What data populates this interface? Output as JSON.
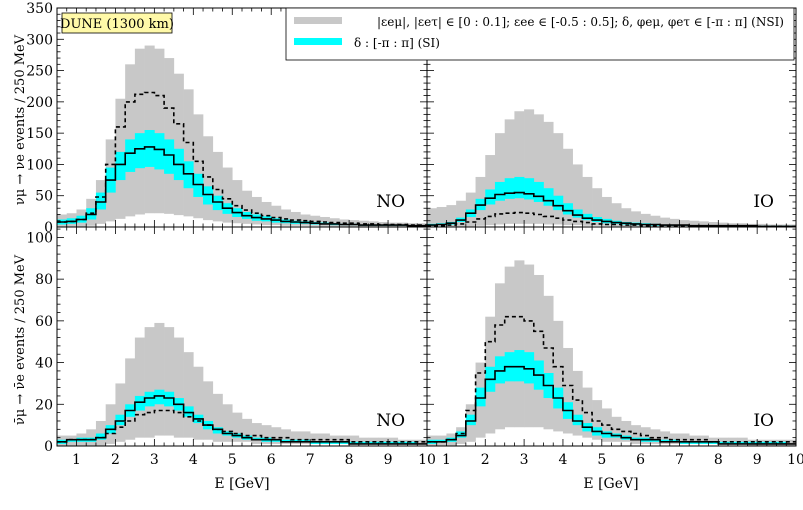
{
  "figure": {
    "experiment_label": "DUNE (1300 km)",
    "xlabel": "E [GeV]",
    "ylabel_top": "νμ → νe events / 250 MeV",
    "ylabel_bottom": "ν̄μ → ν̄e events / 250 MeV",
    "legend": {
      "nsi": "|εeμ|, |εeτ| ∈ [0 : 0.1]; εee ∈ [-0.5 : 0.5]; δ, φeμ, φeτ ∈ [-π : π] (NSI)",
      "si": "δ : [-π : π] (SI)"
    },
    "colors": {
      "nsi_band": "#c8c8c8",
      "si_band": "#00ffff",
      "line": "#000000"
    }
  },
  "chart_data": [
    {
      "type": "area",
      "panel": "neutrino-NO",
      "ordering_label": "NO",
      "ylabel": "νμ → νe events / 250 MeV",
      "xlim": [
        0.5,
        10
      ],
      "ylim": [
        0,
        350
      ],
      "yticks": [
        0,
        50,
        100,
        150,
        200,
        250,
        300,
        350
      ],
      "xticks": [
        1,
        2,
        3,
        4,
        5,
        6,
        7,
        8,
        9,
        10
      ],
      "series": [
        {
          "name": "NSI max",
          "values": [
            20,
            22,
            28,
            45,
            75,
            140,
            205,
            260,
            285,
            290,
            285,
            270,
            245,
            220,
            180,
            145,
            120,
            95,
            75,
            58,
            48,
            40,
            34,
            28,
            24,
            20,
            18,
            16,
            14,
            12,
            11,
            10,
            9,
            8,
            7,
            7,
            6,
            6
          ]
        },
        {
          "name": "NSI min",
          "values": [
            0,
            0,
            0,
            2,
            5,
            9,
            13,
            17,
            20,
            22,
            22,
            21,
            19,
            17,
            14,
            11,
            9,
            7,
            6,
            5,
            4,
            3,
            3,
            2,
            2,
            2,
            2,
            1,
            1,
            1,
            1,
            1,
            1,
            1,
            1,
            1,
            1,
            1
          ]
        },
        {
          "name": "SI max",
          "values": [
            12,
            14,
            18,
            30,
            55,
            95,
            120,
            140,
            150,
            155,
            150,
            140,
            125,
            105,
            85,
            65,
            50,
            38,
            30,
            24,
            20,
            17,
            14,
            12,
            10,
            9,
            8,
            7,
            6,
            5,
            5,
            4,
            4,
            4,
            3,
            3,
            3,
            3
          ]
        },
        {
          "name": "SI min",
          "values": [
            4,
            5,
            7,
            12,
            28,
            55,
            75,
            88,
            94,
            96,
            92,
            85,
            75,
            62,
            48,
            36,
            27,
            21,
            16,
            13,
            10,
            9,
            7,
            6,
            5,
            5,
            4,
            4,
            3,
            3,
            3,
            2,
            2,
            2,
            2,
            2,
            2,
            2
          ]
        },
        {
          "name": "SI best fit",
          "values": [
            8,
            9,
            12,
            20,
            40,
            75,
            100,
            118,
            125,
            128,
            124,
            115,
            100,
            85,
            68,
            52,
            40,
            30,
            23,
            18,
            15,
            13,
            11,
            9,
            8,
            7,
            6,
            5,
            5,
            4,
            4,
            3,
            3,
            3,
            3,
            3,
            2,
            2
          ]
        },
        {
          "name": "NSI best fit",
          "values": [
            8,
            9,
            12,
            22,
            48,
            100,
            160,
            200,
            212,
            215,
            210,
            190,
            165,
            135,
            105,
            80,
            60,
            45,
            34,
            27,
            22,
            18,
            15,
            13,
            11,
            10,
            9,
            8,
            7,
            6,
            6,
            5,
            5,
            4,
            4,
            4,
            3,
            3
          ]
        }
      ]
    },
    {
      "type": "area",
      "panel": "neutrino-IO",
      "ordering_label": "IO",
      "xlim": [
        0.5,
        10
      ],
      "ylim": [
        0,
        350
      ],
      "yticks": [
        0,
        50,
        100,
        150,
        200,
        250,
        300,
        350
      ],
      "xticks": [
        1,
        2,
        3,
        4,
        5,
        6,
        7,
        8,
        9,
        10
      ],
      "series": [
        {
          "name": "NSI max",
          "values": [
            30,
            32,
            35,
            42,
            55,
            80,
            115,
            150,
            172,
            185,
            188,
            180,
            168,
            150,
            125,
            100,
            80,
            62,
            48,
            38,
            30,
            25,
            21,
            18,
            15,
            13,
            11,
            10,
            9,
            8,
            7,
            6,
            6,
            5,
            5,
            4,
            4,
            4
          ]
        },
        {
          "name": "NSI min",
          "values": [
            0,
            0,
            0,
            0,
            1,
            2,
            3,
            4,
            5,
            5,
            5,
            5,
            4,
            4,
            3,
            3,
            2,
            2,
            2,
            1,
            1,
            1,
            1,
            1,
            1,
            1,
            1,
            1,
            0,
            0,
            0,
            0,
            0,
            0,
            0,
            0,
            0,
            0
          ]
        },
        {
          "name": "SI max",
          "values": [
            5,
            6,
            8,
            15,
            28,
            45,
            60,
            72,
            78,
            80,
            78,
            72,
            62,
            50,
            38,
            28,
            21,
            16,
            13,
            10,
            8,
            7,
            6,
            5,
            4,
            4,
            3,
            3,
            3,
            2,
            2,
            2,
            2,
            2,
            2,
            2,
            2,
            2
          ]
        },
        {
          "name": "SI min",
          "values": [
            2,
            3,
            4,
            8,
            16,
            27,
            36,
            42,
            45,
            46,
            44,
            40,
            34,
            27,
            20,
            15,
            11,
            8,
            6,
            5,
            4,
            3,
            3,
            2,
            2,
            2,
            2,
            2,
            1,
            1,
            1,
            1,
            1,
            1,
            1,
            1,
            1,
            1
          ]
        },
        {
          "name": "SI best fit",
          "values": [
            3,
            4,
            6,
            11,
            22,
            35,
            46,
            52,
            54,
            55,
            53,
            49,
            42,
            34,
            26,
            19,
            14,
            11,
            9,
            7,
            6,
            5,
            4,
            4,
            3,
            3,
            3,
            2,
            2,
            2,
            2,
            2,
            2,
            2,
            1,
            1,
            1,
            1
          ]
        },
        {
          "name": "NSI best fit",
          "values": [
            2,
            2,
            3,
            5,
            8,
            13,
            17,
            21,
            22,
            23,
            22,
            20,
            17,
            14,
            11,
            9,
            7,
            5,
            4,
            4,
            3,
            3,
            2,
            2,
            2,
            2,
            2,
            1,
            1,
            1,
            1,
            1,
            1,
            1,
            1,
            1,
            1,
            1
          ]
        }
      ]
    },
    {
      "type": "area",
      "panel": "antineutrino-NO",
      "ordering_label": "NO",
      "ylabel": "ν̄μ → ν̄e events / 250 MeV",
      "xlim": [
        0.5,
        10
      ],
      "ylim": [
        0,
        105
      ],
      "yticks": [
        0,
        20,
        40,
        60,
        80,
        100
      ],
      "xticks": [
        1,
        2,
        3,
        4,
        5,
        6,
        7,
        8,
        9,
        10
      ],
      "series": [
        {
          "name": "NSI max",
          "values": [
            5,
            5,
            6,
            8,
            12,
            20,
            30,
            42,
            52,
            57,
            59,
            57,
            52,
            45,
            38,
            31,
            25,
            20,
            16,
            13,
            11,
            10,
            9,
            8,
            7,
            7,
            6,
            6,
            5,
            5,
            5,
            4,
            4,
            4,
            4,
            3,
            3,
            3
          ]
        },
        {
          "name": "NSI min",
          "values": [
            0,
            0,
            0,
            0,
            0,
            1,
            2,
            3,
            4,
            4,
            5,
            5,
            4,
            4,
            3,
            3,
            2,
            2,
            2,
            2,
            1,
            1,
            1,
            1,
            1,
            1,
            1,
            1,
            1,
            1,
            1,
            1,
            1,
            1,
            1,
            1,
            1,
            1
          ]
        },
        {
          "name": "SI max",
          "values": [
            3,
            3,
            4,
            4,
            6,
            10,
            15,
            20,
            24,
            26,
            27,
            26,
            23,
            19,
            15,
            12,
            9,
            7,
            6,
            5,
            4,
            4,
            3,
            3,
            3,
            3,
            2,
            2,
            2,
            2,
            2,
            2,
            2,
            2,
            2,
            2,
            2,
            1
          ]
        },
        {
          "name": "SI min",
          "values": [
            1,
            2,
            2,
            2,
            3,
            6,
            10,
            14,
            17,
            19,
            20,
            19,
            17,
            14,
            11,
            8,
            6,
            5,
            4,
            3,
            3,
            2,
            2,
            2,
            2,
            2,
            1,
            1,
            1,
            1,
            1,
            1,
            1,
            1,
            1,
            1,
            1,
            1
          ]
        },
        {
          "name": "SI best fit",
          "values": [
            2,
            3,
            3,
            3,
            4,
            8,
            12,
            17,
            21,
            23,
            24,
            23,
            20,
            16,
            13,
            10,
            8,
            6,
            5,
            4,
            3,
            3,
            3,
            2,
            2,
            2,
            2,
            2,
            2,
            2,
            1,
            1,
            1,
            1,
            1,
            1,
            1,
            1
          ]
        },
        {
          "name": "NSI best fit",
          "values": [
            2,
            3,
            3,
            3,
            4,
            6,
            9,
            12,
            15,
            16,
            17,
            17,
            16,
            14,
            12,
            10,
            8,
            7,
            6,
            5,
            5,
            4,
            4,
            4,
            3,
            3,
            3,
            3,
            3,
            3,
            2,
            2,
            2,
            2,
            2,
            2,
            2,
            2
          ]
        }
      ]
    },
    {
      "type": "area",
      "panel": "antineutrino-IO",
      "ordering_label": "IO",
      "xlim": [
        0.5,
        10
      ],
      "ylim": [
        0,
        105
      ],
      "yticks": [
        0,
        20,
        40,
        60,
        80,
        100
      ],
      "xticks": [
        1,
        2,
        3,
        4,
        5,
        6,
        7,
        8,
        9,
        10
      ],
      "series": [
        {
          "name": "NSI max",
          "values": [
            5,
            5,
            6,
            9,
            20,
            40,
            62,
            78,
            86,
            89,
            87,
            82,
            72,
            60,
            47,
            36,
            28,
            22,
            18,
            14,
            12,
            10,
            9,
            8,
            7,
            6,
            6,
            5,
            5,
            4,
            4,
            4,
            4,
            3,
            3,
            3,
            3,
            3
          ]
        },
        {
          "name": "NSI min",
          "values": [
            0,
            0,
            0,
            1,
            2,
            4,
            6,
            8,
            9,
            9,
            9,
            9,
            8,
            7,
            6,
            5,
            4,
            3,
            2,
            2,
            2,
            1,
            1,
            1,
            1,
            1,
            1,
            1,
            1,
            1,
            1,
            1,
            1,
            0,
            0,
            0,
            0,
            0
          ]
        },
        {
          "name": "SI max",
          "values": [
            3,
            3,
            4,
            7,
            15,
            28,
            38,
            43,
            45,
            46,
            45,
            41,
            35,
            28,
            21,
            15,
            11,
            9,
            7,
            6,
            5,
            4,
            4,
            3,
            3,
            3,
            2,
            2,
            2,
            2,
            2,
            2,
            2,
            2,
            2,
            2,
            2,
            1
          ]
        },
        {
          "name": "SI min",
          "values": [
            1,
            2,
            2,
            4,
            10,
            19,
            26,
            30,
            31,
            31,
            30,
            27,
            23,
            18,
            13,
            10,
            7,
            5,
            4,
            4,
            3,
            3,
            2,
            2,
            2,
            2,
            1,
            1,
            1,
            1,
            1,
            1,
            1,
            1,
            1,
            1,
            1,
            1
          ]
        },
        {
          "name": "SI best fit",
          "values": [
            2,
            2,
            3,
            5,
            12,
            23,
            32,
            36,
            38,
            38,
            37,
            34,
            29,
            23,
            17,
            12,
            9,
            7,
            6,
            5,
            4,
            3,
            3,
            3,
            2,
            2,
            2,
            2,
            2,
            2,
            1,
            1,
            1,
            1,
            1,
            1,
            1,
            1
          ]
        },
        {
          "name": "NSI best fit",
          "values": [
            2,
            2,
            3,
            6,
            17,
            35,
            50,
            58,
            62,
            62,
            60,
            55,
            47,
            38,
            29,
            22,
            16,
            12,
            10,
            8,
            7,
            6,
            5,
            4,
            4,
            3,
            3,
            3,
            3,
            2,
            2,
            2,
            2,
            2,
            2,
            2,
            2,
            2
          ]
        }
      ]
    }
  ]
}
